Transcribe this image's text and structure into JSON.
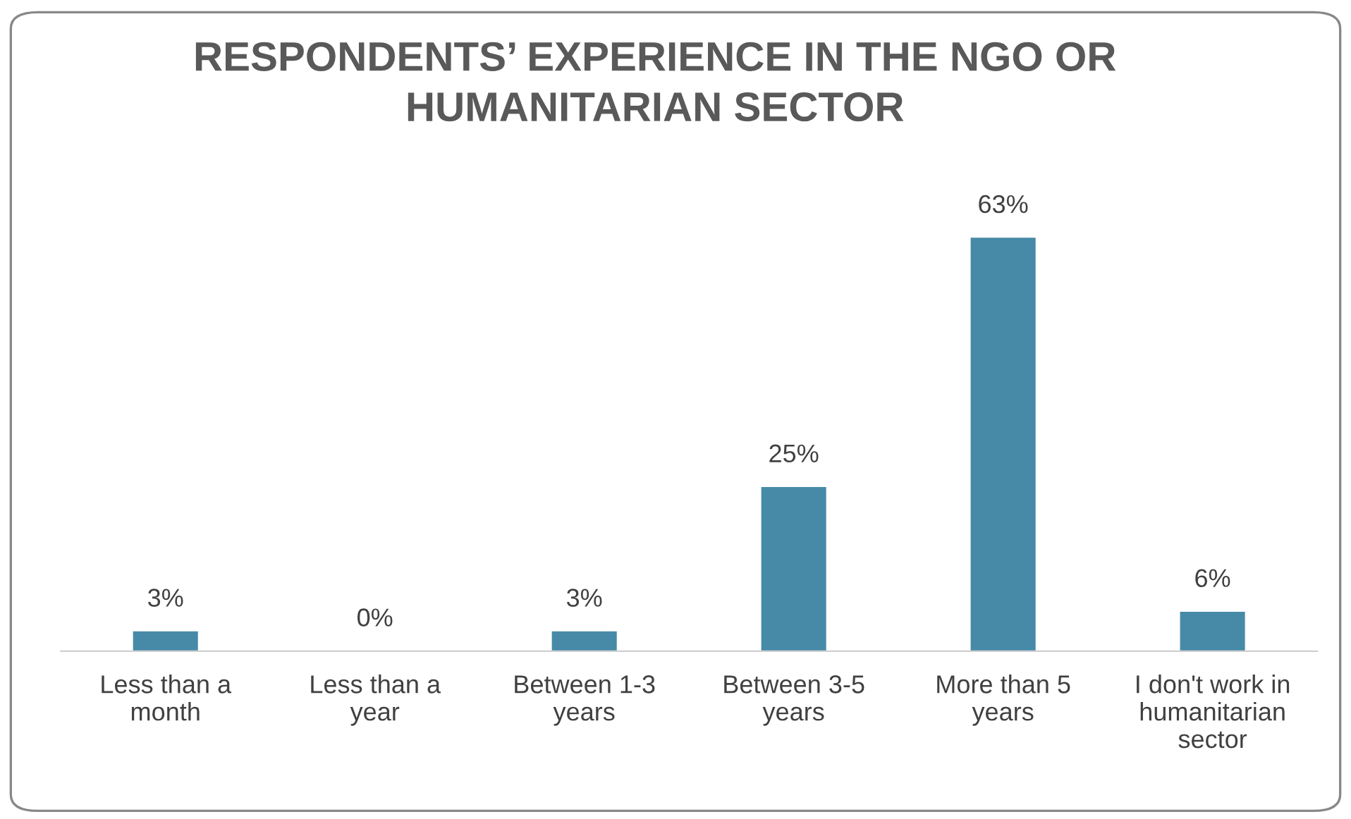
{
  "chart_data": {
    "type": "bar",
    "title": "RESPONDENTS’ EXPERIENCE IN THE NGO OR HUMANITARIAN SECTOR",
    "categories": [
      "Less than a\nmonth",
      "Less than a\nyear",
      "Between 1-3\nyears",
      "Between 3-5\nyears",
      "More than 5\nyears",
      "I don't work in\nhumanitarian\nsector"
    ],
    "values": [
      3,
      0,
      3,
      25,
      63,
      6
    ],
    "value_labels": [
      "3%",
      "0%",
      "3%",
      "25%",
      "63%",
      "6%"
    ],
    "color": "#468aa8",
    "tick_labels": "x",
    "grid": false,
    "legend": false
  }
}
